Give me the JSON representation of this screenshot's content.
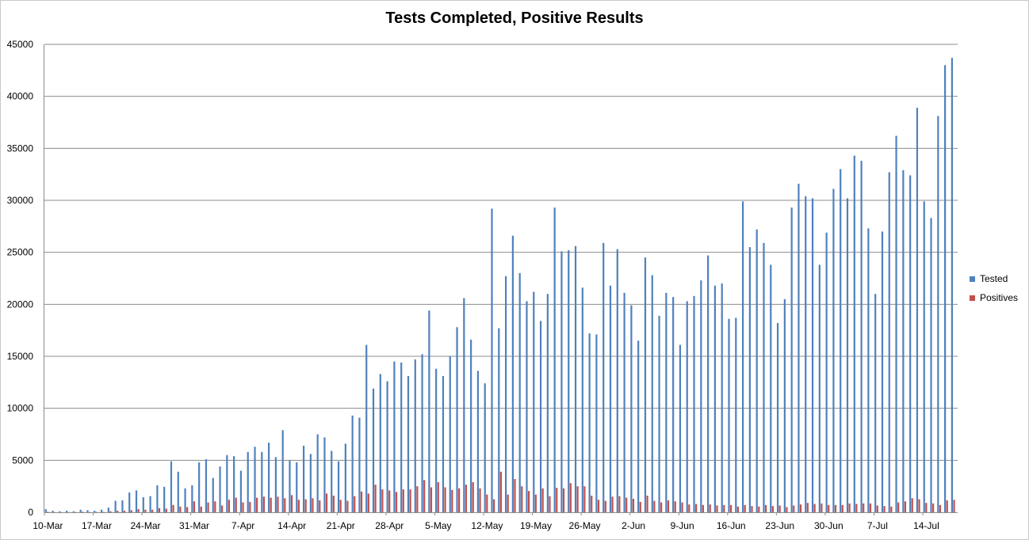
{
  "chart_data": {
    "type": "bar",
    "title": "Tests Completed, Positive Results",
    "xlabel": "",
    "ylabel": "",
    "ylim": [
      0,
      45000
    ],
    "y_ticks": [
      0,
      5000,
      10000,
      15000,
      20000,
      25000,
      30000,
      35000,
      40000,
      45000
    ],
    "x_tick_labels": [
      "10-Mar",
      "17-Mar",
      "24-Mar",
      "31-Mar",
      "7-Apr",
      "14-Apr",
      "21-Apr",
      "28-Apr",
      "5-May",
      "12-May",
      "19-May",
      "26-May",
      "2-Jun",
      "9-Jun",
      "16-Jun",
      "23-Jun",
      "30-Jun",
      "7-Jul",
      "14-Jul"
    ],
    "grid": true,
    "legend_position": "right",
    "series": [
      {
        "name": "Tested",
        "color": "#4f81bd",
        "values": [
          300,
          150,
          100,
          150,
          100,
          250,
          200,
          150,
          250,
          450,
          1100,
          1150,
          1900,
          2100,
          1450,
          1550,
          2600,
          2450,
          4900,
          3900,
          2300,
          2600,
          4800,
          5100,
          3300,
          4400,
          5500,
          5400,
          4000,
          5800,
          6300,
          5800,
          6700,
          5300,
          7900,
          5000,
          4800,
          6400,
          5600,
          7500,
          7200,
          5900,
          4900,
          6600,
          9300,
          9100,
          16100,
          11900,
          13300,
          12600,
          14500,
          14400,
          13100,
          14700,
          15200,
          19400,
          13800,
          13100,
          15000,
          17800,
          20600,
          16600,
          13600,
          12400,
          29200,
          17700,
          22700,
          26600,
          23000,
          20300,
          21200,
          18400,
          21000,
          29300,
          25100,
          25200,
          25600,
          21600,
          17200,
          17100,
          25900,
          21800,
          25300,
          21100,
          19900,
          16500,
          24500,
          22800,
          18900,
          21100,
          20700,
          16100,
          20300,
          20800,
          22300,
          24700,
          21800,
          22000,
          18600,
          18700,
          29900,
          25500,
          27200,
          25900,
          23800,
          18200,
          20500,
          29300,
          31600,
          30400,
          30200,
          23800,
          26900,
          31100,
          33000,
          30200,
          34300,
          33800,
          27300,
          21000,
          27000,
          32700,
          36200,
          32900,
          32400,
          38900,
          29900,
          28300,
          38100,
          43000,
          43700
        ]
      },
      {
        "name": "Positives",
        "color": "#c0504d",
        "values": [
          50,
          20,
          10,
          20,
          20,
          50,
          30,
          30,
          40,
          100,
          150,
          150,
          200,
          300,
          250,
          250,
          400,
          350,
          700,
          550,
          500,
          1050,
          550,
          950,
          1050,
          650,
          1200,
          1400,
          950,
          1000,
          1400,
          1500,
          1400,
          1500,
          1350,
          1650,
          1200,
          1250,
          1350,
          1150,
          1800,
          1600,
          1200,
          1100,
          1550,
          2000,
          1800,
          2650,
          2200,
          2100,
          1950,
          2200,
          2200,
          2500,
          3100,
          2400,
          2900,
          2400,
          2150,
          2300,
          2650,
          2900,
          2300,
          1700,
          1250,
          3900,
          1700,
          3200,
          2500,
          2050,
          1700,
          2300,
          1550,
          2350,
          2300,
          2800,
          2500,
          2500,
          1600,
          1200,
          1100,
          1500,
          1550,
          1400,
          1300,
          1000,
          1600,
          1100,
          950,
          1150,
          1050,
          950,
          750,
          800,
          700,
          750,
          650,
          700,
          700,
          550,
          700,
          600,
          550,
          700,
          600,
          650,
          500,
          650,
          750,
          900,
          800,
          850,
          700,
          700,
          700,
          850,
          800,
          850,
          850,
          650,
          600,
          550,
          950,
          1050,
          1350,
          1250,
          900,
          850,
          700,
          1150,
          1200,
          1350
        ]
      }
    ]
  }
}
